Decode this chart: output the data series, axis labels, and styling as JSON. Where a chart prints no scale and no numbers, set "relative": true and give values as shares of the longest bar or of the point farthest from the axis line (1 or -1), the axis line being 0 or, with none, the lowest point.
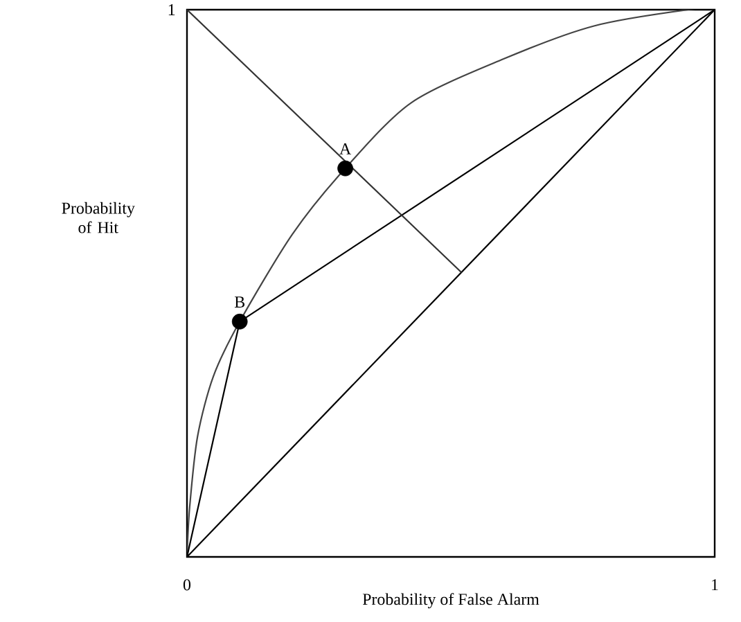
{
  "chart_data": {
    "type": "line",
    "xlabel": "Probability of False Alarm",
    "ylabel": "Probability of Hit",
    "xlim": [
      0,
      1
    ],
    "xticks": [
      0,
      1
    ],
    "relative": true,
    "marker": "none",
    "series": [
      {
        "color": "#444444",
        "x": [
          0,
          0.005,
          0.02,
          0.05,
          0.1,
          0.2,
          0.3,
          0.425,
          0.6,
          0.77,
          0.95,
          1
        ],
        "values": [
          0,
          0.09,
          0.22,
          0.33,
          0.43,
          0.59,
          0.71,
          0.83,
          0.91,
          0.97,
          1.0,
          1
        ]
      },
      {
        "color": "#000000",
        "x": [
          0,
          0.1
        ],
        "values": [
          0,
          0.43
        ]
      },
      {
        "color": "#000000",
        "x": [
          0.1,
          1
        ],
        "values": [
          0.43,
          1
        ]
      },
      {
        "color": "#000000",
        "x": [
          0,
          1
        ],
        "values": [
          0,
          1
        ]
      },
      {
        "color": "#333333",
        "x": [
          0,
          0.52
        ],
        "values": [
          1,
          0.52
        ]
      },
      {
        "type": "scatter",
        "marker": "circle",
        "color": "#000000",
        "x": [
          0.3,
          0.1
        ],
        "values": [
          0.71,
          0.43
        ]
      }
    ],
    "annotations": [
      {
        "text": "A",
        "x": 0.3,
        "y": 0.71
      },
      {
        "text": "B",
        "x": 0.1,
        "y": 0.43
      },
      "1"
    ]
  }
}
